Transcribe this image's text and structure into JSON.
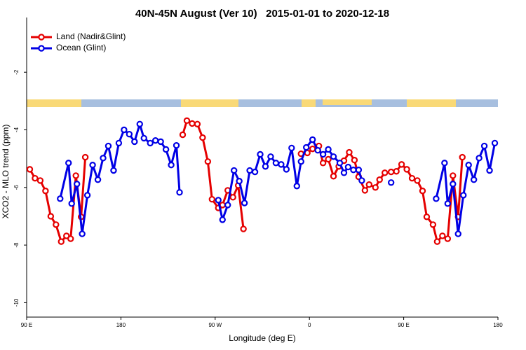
{
  "chart_data": {
    "type": "line",
    "title": "40N-45N August (Ver 10)   2015-01-01 to 2020-12-18",
    "xlabel": "Longitude (deg E)",
    "ylabel": "XCO2 - MLO trend (ppm)",
    "xlim": [
      90,
      540
    ],
    "xticks": [
      {
        "value": 90,
        "label": "90 E"
      },
      {
        "value": 180,
        "label": "180"
      },
      {
        "value": 270,
        "label": "90 W"
      },
      {
        "value": 360,
        "label": "0"
      },
      {
        "value": 450,
        "label": "90 E"
      },
      {
        "value": 540,
        "label": "180"
      }
    ],
    "ylim": [
      -10.5,
      -0.1
    ],
    "yticks": [
      -2,
      -4,
      -6,
      -8,
      -10
    ],
    "legend": "upper left",
    "series": [
      {
        "name": "Land (Nadir&Glint)",
        "color": "#e50000",
        "x": [
          93,
          98,
          103,
          108,
          113,
          118,
          123,
          128,
          132,
          137,
          142,
          146,
          null,
          239,
          243,
          248,
          253,
          258,
          263,
          267,
          273,
          277,
          282,
          287,
          292,
          297,
          null,
          352,
          358,
          363,
          369,
          373,
          378,
          383,
          388,
          393,
          398,
          403,
          407,
          413,
          417,
          423,
          427,
          432,
          438,
          443,
          448,
          453,
          458,
          463,
          468,
          472,
          478,
          482,
          487,
          492,
          497,
          502,
          506
        ],
        "values": [
          -5.37,
          -5.68,
          -5.76,
          -6.12,
          -7.0,
          -7.29,
          -7.88,
          -7.68,
          -7.78,
          -5.59,
          -7.02,
          -4.95,
          null,
          -4.17,
          -3.68,
          -3.78,
          -3.8,
          -4.27,
          -5.1,
          -6.41,
          -6.71,
          -6.61,
          -6.1,
          -6.34,
          -5.93,
          -7.44,
          null,
          -4.83,
          -4.8,
          -4.66,
          -4.56,
          -5.15,
          -5.02,
          -5.61,
          -5.27,
          -5.07,
          -4.78,
          -5.05,
          -5.63,
          -6.1,
          -5.9,
          -6.0,
          -5.73,
          -5.49,
          -5.46,
          -5.44,
          -5.2,
          -5.37,
          -5.68,
          -5.76,
          -6.12,
          -7.02,
          -7.29,
          -7.88,
          -7.68,
          -7.78,
          -5.59,
          -7.02,
          -4.95
        ]
      },
      {
        "name": "Ocean (Glint)",
        "color": "#0000e5",
        "x": [
          122,
          130,
          133,
          138,
          143,
          148,
          153,
          158,
          163,
          168,
          173,
          178,
          183,
          188,
          193,
          198,
          202,
          208,
          213,
          218,
          223,
          228,
          233,
          236,
          null,
          273,
          277,
          282,
          288,
          293,
          298,
          303,
          308,
          313,
          318,
          323,
          328,
          333,
          338,
          343,
          348,
          352,
          357,
          363,
          368,
          373,
          378,
          383,
          389,
          393,
          397,
          402,
          407,
          410,
          null,
          438,
          null,
          481,
          489,
          492,
          497,
          502,
          507,
          512,
          517,
          522,
          527,
          532,
          537
        ],
        "values": [
          -6.39,
          -5.15,
          -6.56,
          -5.88,
          -7.61,
          -6.27,
          -5.22,
          -5.73,
          -4.98,
          -4.56,
          -5.41,
          -4.46,
          -4.0,
          -4.15,
          -4.41,
          -3.8,
          -4.29,
          -4.46,
          -4.37,
          -4.41,
          -4.68,
          -5.22,
          -4.54,
          -6.17,
          null,
          -6.44,
          -7.12,
          -6.61,
          -5.41,
          -5.78,
          -6.54,
          -5.41,
          -5.46,
          -4.85,
          -5.27,
          -4.93,
          -5.15,
          -5.2,
          -5.37,
          -4.63,
          -5.95,
          -5.1,
          -4.61,
          -4.34,
          -4.71,
          -4.85,
          -4.68,
          -4.93,
          -5.15,
          -5.49,
          -5.29,
          -5.39,
          -5.39,
          -5.76,
          null,
          -5.83,
          null,
          -6.39,
          -5.15,
          -6.56,
          -5.88,
          -7.61,
          -6.27,
          -5.22,
          -5.73,
          -4.98,
          -4.56,
          -5.41,
          -4.46
        ]
      }
    ]
  }
}
